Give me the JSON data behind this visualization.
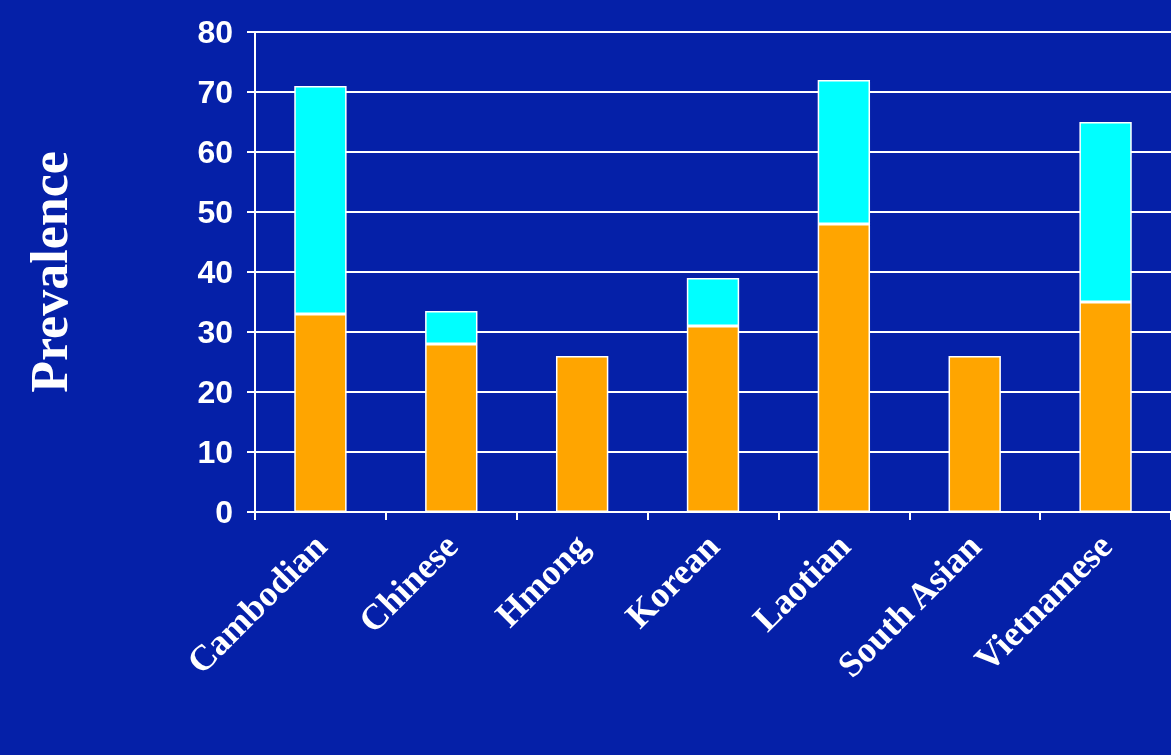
{
  "chart_data": {
    "type": "bar",
    "ylabel": "Prevalence",
    "categories": [
      "Cambodian",
      "Chinese",
      "Hmong",
      "Korean",
      "Laotian",
      "South Asian",
      "Vietnamese"
    ],
    "series": [
      {
        "color": "#ffa500",
        "values": [
          33,
          28,
          26,
          31,
          48,
          26,
          35
        ]
      },
      {
        "color": "#00ffff",
        "values": [
          38,
          5.5,
          null,
          8,
          24,
          null,
          30
        ]
      }
    ],
    "stacked": true,
    "ylim": [
      0,
      80
    ],
    "yticks": [
      0,
      10,
      20,
      30,
      40,
      50,
      60,
      70,
      80
    ],
    "grid": "y"
  }
}
